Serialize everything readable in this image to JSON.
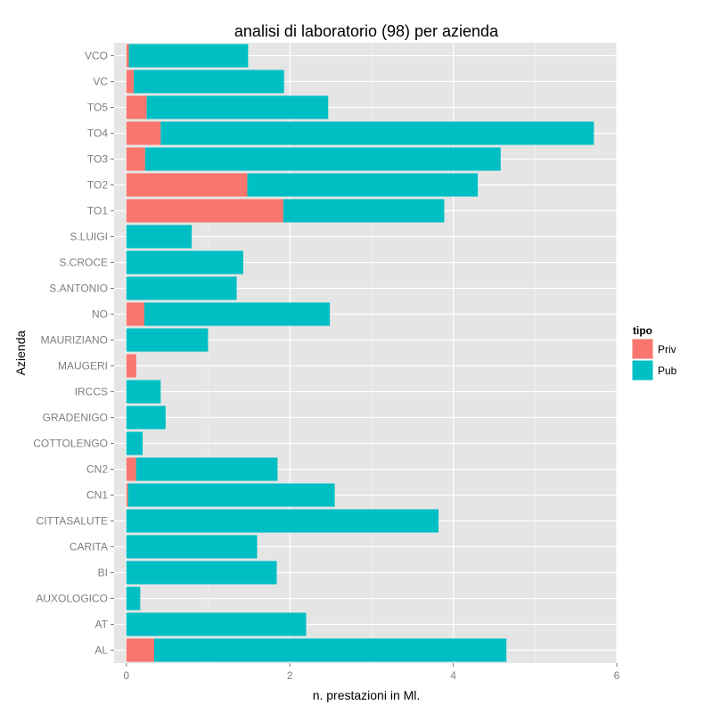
{
  "chart_data": {
    "type": "bar",
    "orientation": "horizontal",
    "stacked": true,
    "title": "analisi di laboratorio (98) per azienda",
    "xlabel": "n. prestazioni  in Ml.",
    "ylabel": "Azienda",
    "xlim": [
      -0.15,
      6
    ],
    "xticks": [
      0,
      2,
      4,
      6
    ],
    "grid": true,
    "legend_placement": "right",
    "legend_title": "tipo",
    "categories": [
      "AL",
      "AT",
      "AUXOLOGICO",
      "BI",
      "CARITA",
      "CITTASALUTE",
      "CN1",
      "CN2",
      "COTTOLENGO",
      "GRADENIGO",
      "IRCCS",
      "MAUGERI",
      "MAURIZIANO",
      "NO",
      "S.ANTONIO",
      "S.CROCE",
      "S.LUIGI",
      "TO1",
      "TO2",
      "TO3",
      "TO4",
      "TO5",
      "VC",
      "VCO"
    ],
    "series": [
      {
        "name": "Priv",
        "color": "#F8766D",
        "values": [
          0.34,
          0,
          0,
          0,
          0,
          0,
          0.02,
          0.12,
          0,
          0,
          0,
          0.12,
          0,
          0.22,
          0,
          0,
          0,
          1.92,
          1.48,
          0.23,
          0.42,
          0.25,
          0.09,
          0.03
        ]
      },
      {
        "name": "Pub",
        "color": "#00BFC4",
        "values": [
          4.31,
          2.2,
          0.17,
          1.84,
          1.6,
          3.82,
          2.53,
          1.73,
          0.2,
          0.48,
          0.42,
          0,
          1.0,
          2.27,
          1.35,
          1.43,
          0.8,
          1.97,
          2.82,
          4.35,
          5.3,
          2.22,
          1.84,
          1.46
        ]
      }
    ]
  }
}
